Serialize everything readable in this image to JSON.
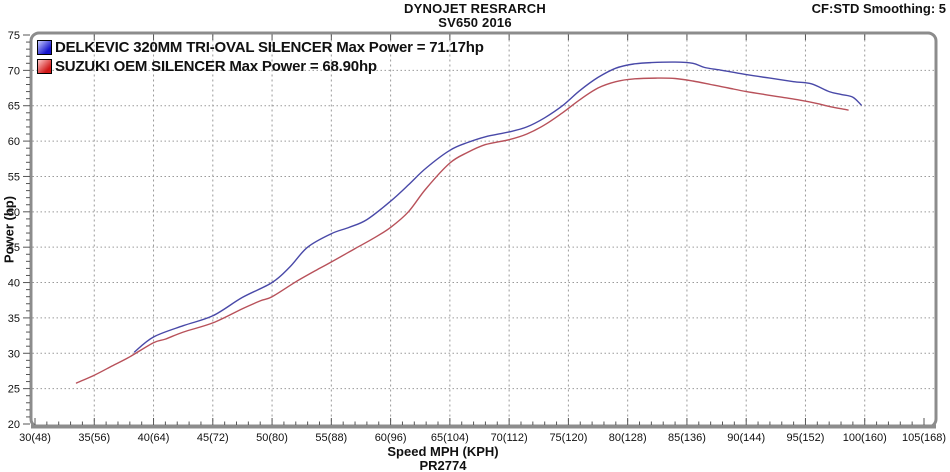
{
  "header": {
    "title": "DYNOJET RESRARCH",
    "subtitle": "SV650 2016",
    "top_right": "CF:STD Smoothing: 5"
  },
  "footer": {
    "xlabel": "Speed MPH (KPH)",
    "run_id": "PR2774"
  },
  "y_axis_label": "Power (hp)",
  "legend": [
    {
      "label": "DELKEVIC 320MM TRI-OVAL SILENCER  Max Power = 71.17hp",
      "swatch_color": "#1414cc",
      "swatch_light": "#c8ccff"
    },
    {
      "label": "SUZUKI OEM SILENCER Max Power = 68.90hp",
      "swatch_color": "#d01818",
      "swatch_light": "#ffc8c8"
    }
  ],
  "chart_data": {
    "type": "line",
    "title": "DYNOJET RESRARCH",
    "subtitle": "SV650 2016",
    "xlabel": "Speed MPH (KPH)",
    "ylabel": "Power (hp)",
    "xlim": [
      30,
      105
    ],
    "ylim": [
      20,
      75
    ],
    "grid": "dashed gray verticals at 5 mph, dotted gray horizontals at 5 hp",
    "legend_position": "top-left inside plot",
    "x_major_ticks": [
      30,
      35,
      40,
      45,
      50,
      55,
      60,
      65,
      70,
      75,
      80,
      85,
      90,
      95,
      100,
      105
    ],
    "x_tick_labels": [
      "30(48)",
      "35(56)",
      "40(64)",
      "45(72)",
      "50(80)",
      "55(88)",
      "60(96)",
      "65(104)",
      "70(112)",
      "75(120)",
      "80(128)",
      "85(136)",
      "90(144)",
      "95(152)",
      "100(160)",
      "105(168)"
    ],
    "x_minor_tick_step": 1,
    "y_ticks": [
      20,
      25,
      30,
      35,
      40,
      45,
      50,
      55,
      60,
      65,
      70,
      75
    ],
    "y_minor_tick_step": 1,
    "series": [
      {
        "name": "SUZUKI OEM SILENCER",
        "max_power_hp": 68.9,
        "color": "#b8515a",
        "x": [
          33.5,
          35,
          36.5,
          38,
          40,
          41,
          42.5,
          45,
          47.5,
          49,
          50,
          52,
          54,
          55,
          57,
          58.5,
          60,
          61.5,
          63,
          65,
          66.5,
          68,
          70,
          71.5,
          73,
          74.5,
          76,
          77.5,
          79,
          80.5,
          82.5,
          84,
          85.5,
          87,
          88.5,
          90,
          91.5,
          93,
          94.5,
          96,
          97,
          98.6
        ],
        "y": [
          25.8,
          26.9,
          28.2,
          29.5,
          31.5,
          32.0,
          33.0,
          34.3,
          36.3,
          37.4,
          38.0,
          40.1,
          42.0,
          42.9,
          44.8,
          46.2,
          47.8,
          50.0,
          53.3,
          56.9,
          58.4,
          59.5,
          60.2,
          61.0,
          62.3,
          64.0,
          65.9,
          67.5,
          68.4,
          68.8,
          68.9,
          68.85,
          68.5,
          68.0,
          67.5,
          67.0,
          66.6,
          66.2,
          65.8,
          65.3,
          64.9,
          64.4
        ]
      },
      {
        "name": "DELKEVIC 320MM TRI-OVAL SILENCER",
        "max_power_hp": 71.17,
        "color": "#4949a8",
        "x": [
          38.4,
          40,
          42.5,
          45,
          47.5,
          50,
          51.5,
          53,
          55,
          56.5,
          58,
          60,
          61.5,
          63,
          65,
          66.5,
          68,
          70,
          71.5,
          73,
          74.5,
          76,
          77.5,
          79,
          80.5,
          82,
          84,
          85.5,
          86.5,
          88,
          90,
          92,
          94,
          95.5,
          97,
          98,
          99,
          99.7
        ],
        "y": [
          30.2,
          32.3,
          33.9,
          35.3,
          37.9,
          40.0,
          42.2,
          45.0,
          46.9,
          47.8,
          48.9,
          51.5,
          53.8,
          56.2,
          58.7,
          59.8,
          60.6,
          61.3,
          62.0,
          63.3,
          65.0,
          67.2,
          69.0,
          70.3,
          70.9,
          71.1,
          71.17,
          71.0,
          70.4,
          70.0,
          69.4,
          68.9,
          68.4,
          68.1,
          67.0,
          66.6,
          66.2,
          65.1
        ]
      }
    ]
  }
}
